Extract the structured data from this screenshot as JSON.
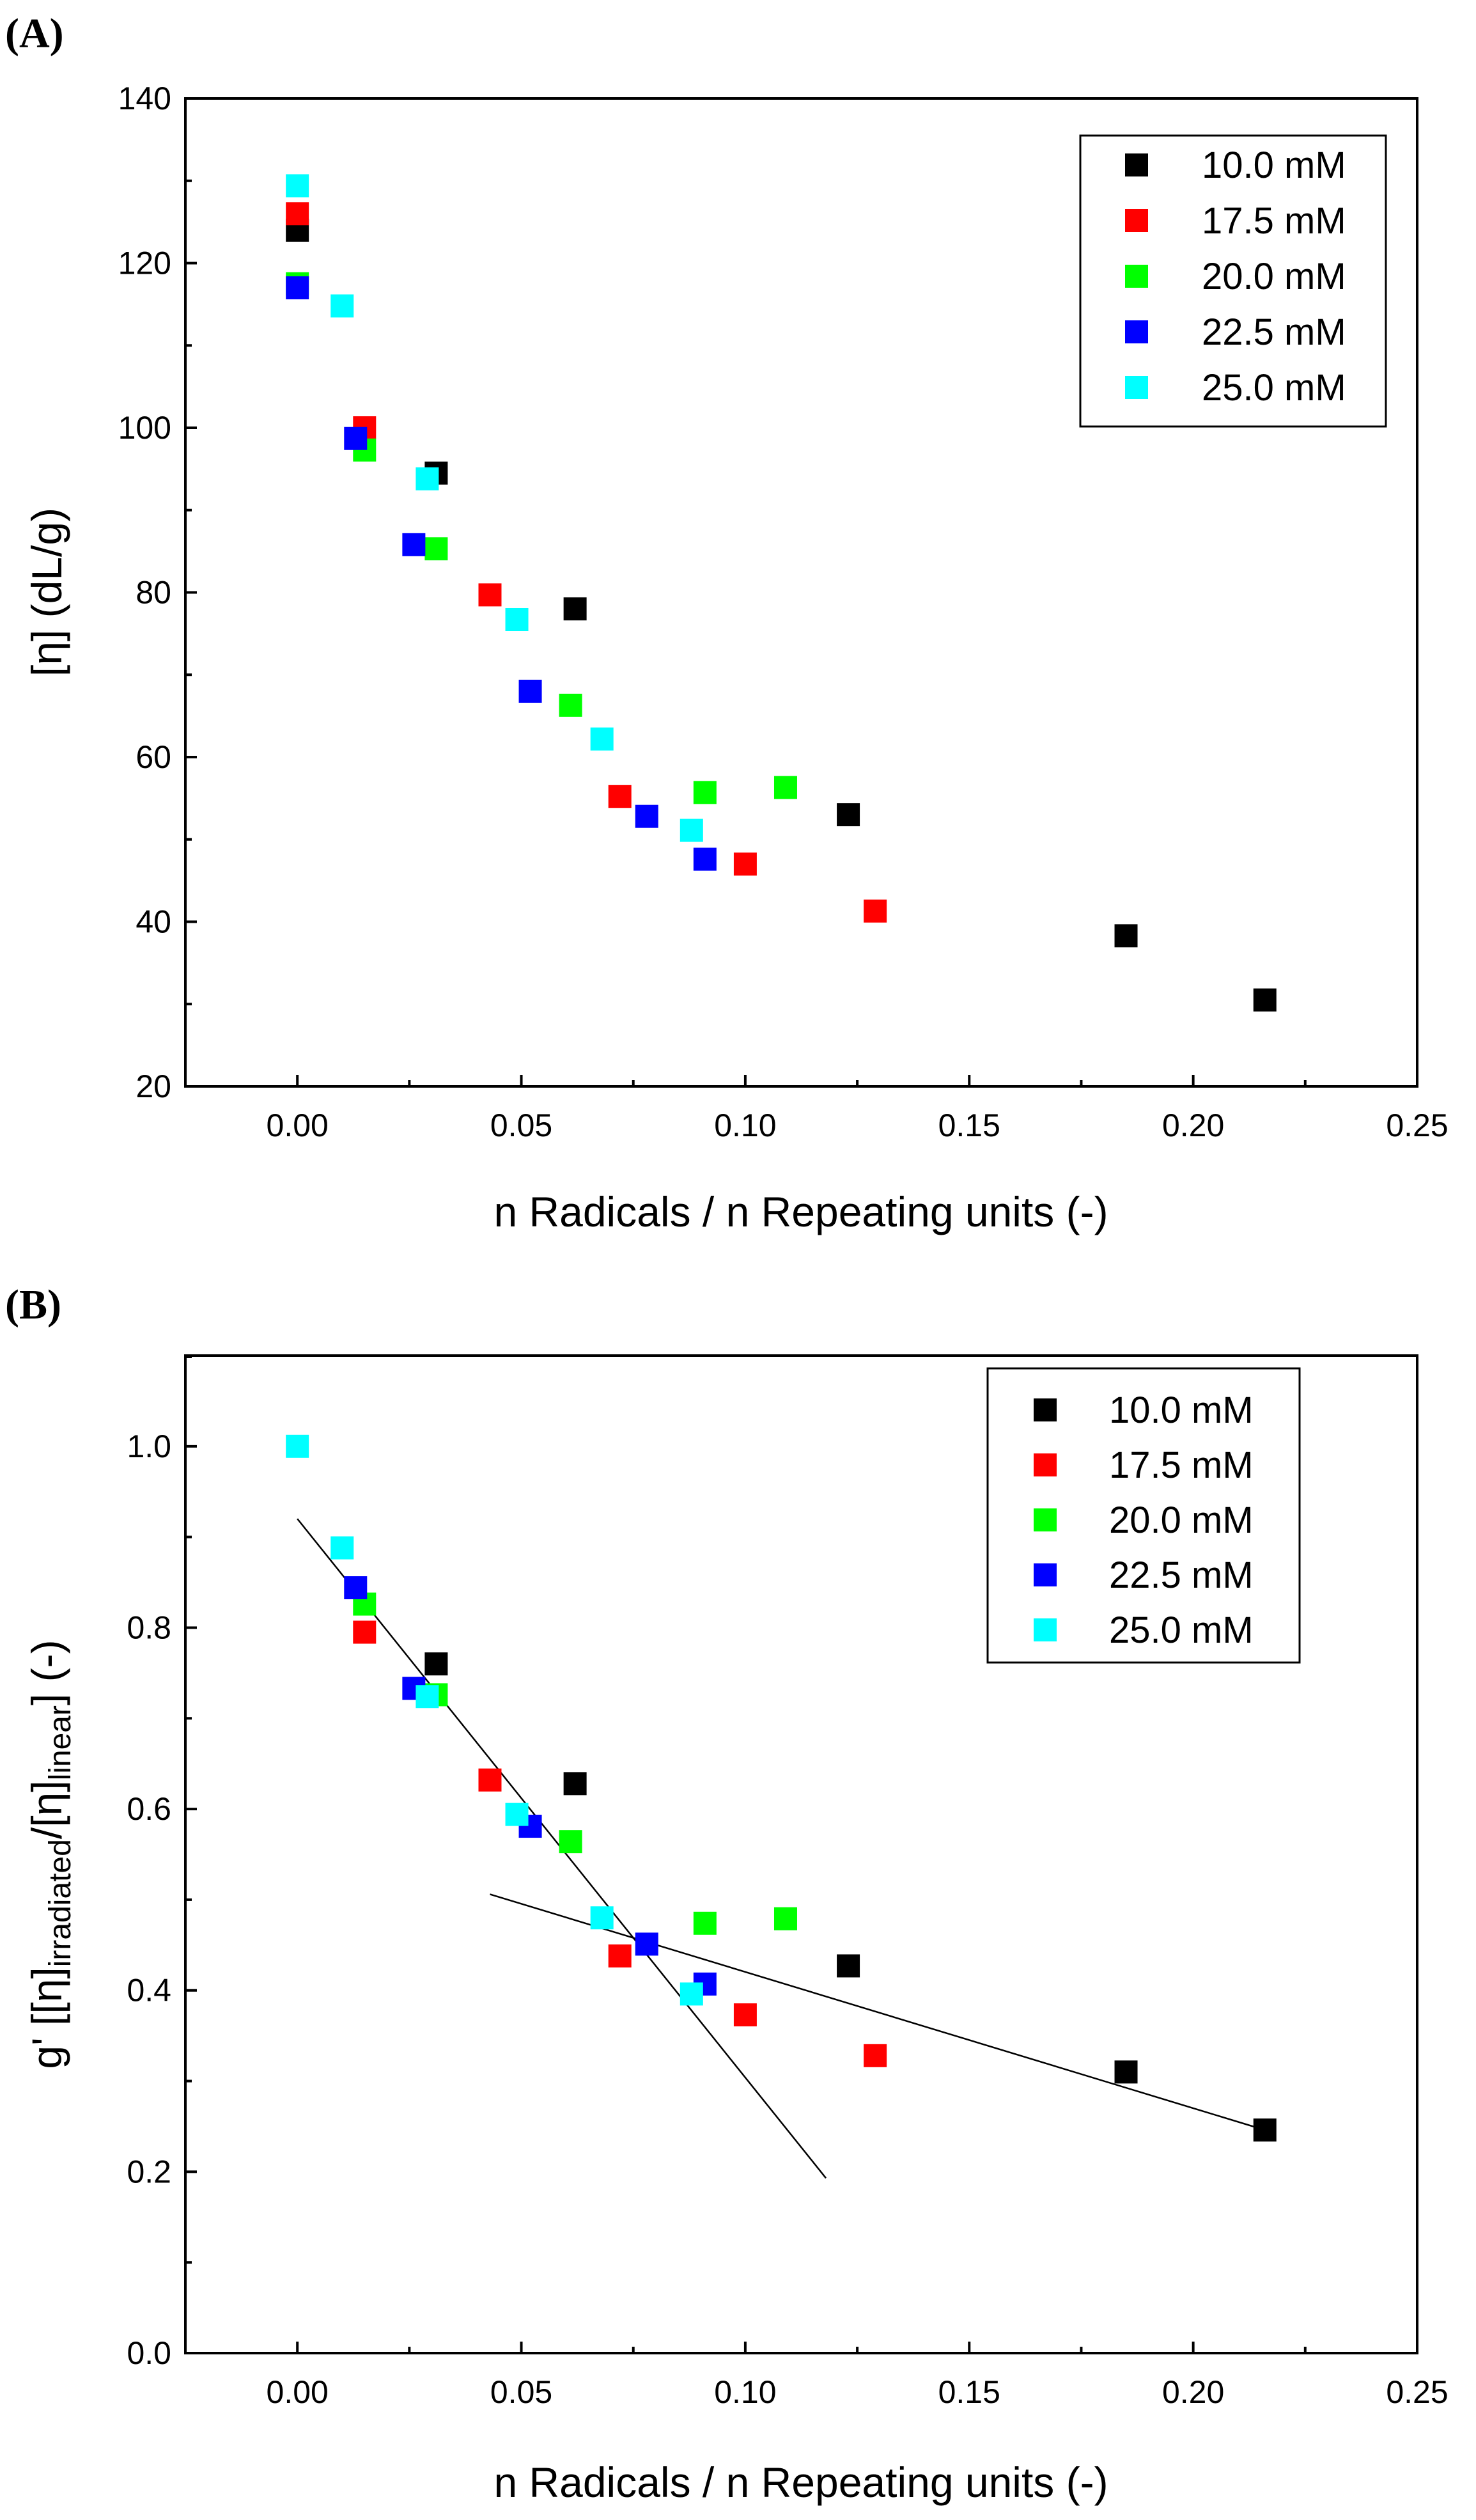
{
  "chart_data": [
    {
      "type": "scatter",
      "panel_label": "(A)",
      "title": "",
      "xlabel": "n Radicals / n Repeating units (-)",
      "ylabel_parts": [
        "[η] (dL/g)"
      ],
      "xlim": [
        -0.025,
        0.25
      ],
      "ylim": [
        20,
        140
      ],
      "xticks": [
        0.0,
        0.05,
        0.1,
        0.15,
        0.2,
        0.25
      ],
      "xtick_labels": [
        "0.00",
        "0.05",
        "0.10",
        "0.15",
        "0.20",
        "0.25"
      ],
      "yticks": [
        20,
        40,
        60,
        80,
        100,
        120,
        140
      ],
      "ytick_labels": [
        "20",
        "40",
        "60",
        "80",
        "100",
        "120",
        "140"
      ],
      "legend_position": "top-right",
      "series": [
        {
          "name": "10.0 mM",
          "color": "#000000",
          "x": [
            0.0,
            0.031,
            0.062,
            0.123,
            0.185,
            0.216
          ],
          "y": [
            124.0,
            94.5,
            78.0,
            53.0,
            38.3,
            30.5
          ]
        },
        {
          "name": "17.5 mM",
          "color": "#ff0000",
          "x": [
            0.0,
            0.015,
            0.043,
            0.072,
            0.1,
            0.129
          ],
          "y": [
            126.0,
            100.0,
            79.7,
            55.2,
            47.0,
            41.3
          ]
        },
        {
          "name": "20.0 mM",
          "color": "#00ff00",
          "x": [
            0.0,
            0.015,
            0.031,
            0.061,
            0.091,
            0.109
          ],
          "y": [
            117.5,
            97.3,
            85.3,
            66.3,
            55.7,
            56.3
          ]
        },
        {
          "name": "22.5 mM",
          "color": "#0000ff",
          "x": [
            0.0,
            0.013,
            0.026,
            0.052,
            0.078,
            0.091
          ],
          "y": [
            117.0,
            98.7,
            85.8,
            68.0,
            52.8,
            47.6
          ]
        },
        {
          "name": "25.0 mM",
          "color": "#00ffff",
          "x": [
            0.0,
            0.01,
            0.029,
            0.049,
            0.068,
            0.088
          ],
          "y": [
            129.4,
            114.8,
            93.8,
            76.7,
            62.2,
            51.1
          ]
        }
      ]
    },
    {
      "type": "scatter",
      "panel_label": "(B)",
      "title": "",
      "xlabel": "n Radicals / n Repeating units (-)",
      "ylabel_parts": [
        "g' [[η]",
        "irradiated",
        "/[η]",
        "linear",
        "] (-)"
      ],
      "xlim": [
        -0.025,
        0.25
      ],
      "ylim": [
        0.0,
        1.1
      ],
      "xticks": [
        0.0,
        0.05,
        0.1,
        0.15,
        0.2,
        0.25
      ],
      "xtick_labels": [
        "0.00",
        "0.05",
        "0.10",
        "0.15",
        "0.20",
        "0.25"
      ],
      "yticks": [
        0.0,
        0.2,
        0.4,
        0.6,
        0.8,
        1.0
      ],
      "ytick_labels": [
        "0.0",
        "0.2",
        "0.4",
        "0.6",
        "0.8",
        "1.0"
      ],
      "legend_position": "top-right",
      "series": [
        {
          "name": "10.0 mM",
          "color": "#000000",
          "x": [
            0.031,
            0.062,
            0.123,
            0.185,
            0.216
          ],
          "y": [
            0.76,
            0.628,
            0.427,
            0.31,
            0.246
          ]
        },
        {
          "name": "17.5 mM",
          "color": "#ff0000",
          "x": [
            0.015,
            0.043,
            0.072,
            0.1,
            0.129
          ],
          "y": [
            0.795,
            0.632,
            0.438,
            0.373,
            0.328
          ]
        },
        {
          "name": "20.0 mM",
          "color": "#00ff00",
          "x": [
            0.015,
            0.031,
            0.061,
            0.091,
            0.109
          ],
          "y": [
            0.826,
            0.726,
            0.564,
            0.474,
            0.479
          ]
        },
        {
          "name": "22.5 mM",
          "color": "#0000ff",
          "x": [
            0.013,
            0.026,
            0.052,
            0.078,
            0.091
          ],
          "y": [
            0.844,
            0.733,
            0.581,
            0.451,
            0.407
          ]
        },
        {
          "name": "25.0 mM",
          "color": "#00ffff",
          "x": [
            0.0,
            0.01,
            0.029,
            0.049,
            0.068,
            0.088
          ],
          "y": [
            1.0,
            0.888,
            0.724,
            0.594,
            0.48,
            0.396
          ]
        }
      ],
      "fit_lines": [
        {
          "name": "fit-line-1",
          "x": [
            0.0,
            0.118
          ],
          "y": [
            0.92,
            0.193
          ]
        },
        {
          "name": "fit-line-2",
          "x": [
            0.043,
            0.216
          ],
          "y": [
            0.506,
            0.246
          ]
        }
      ]
    }
  ]
}
